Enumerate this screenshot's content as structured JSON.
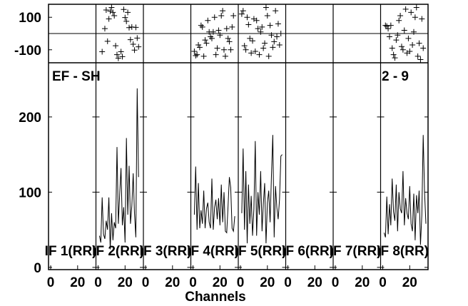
{
  "chart_data": {
    "type": "line",
    "baseline": "EF - SH",
    "antenna_pair": "2 - 9",
    "xlabel": "Channels",
    "x_ticks": [
      "0",
      "20"
    ],
    "x_range": [
      0,
      32
    ],
    "phase_ticks": [
      "100",
      "-100"
    ],
    "phase_range": [
      -180,
      180
    ],
    "amp_ticks": [
      "0",
      "100",
      "200"
    ],
    "amp_range": [
      -3,
      272
    ],
    "panels": [
      {
        "label": "IF 1(RR)",
        "phase": [],
        "amp": []
      },
      {
        "label": "IF 2(RR)",
        "phase": [
          [
            3,
            -112
          ],
          [
            5,
            30
          ],
          [
            6,
            145
          ],
          [
            7,
            -48
          ],
          [
            8,
            90
          ],
          [
            9,
            138
          ],
          [
            10,
            160
          ],
          [
            11,
            130
          ],
          [
            12,
            110
          ],
          [
            13,
            -75
          ],
          [
            14,
            -130
          ],
          [
            15,
            -152
          ],
          [
            17,
            -112
          ],
          [
            18,
            -142
          ],
          [
            19,
            148
          ],
          [
            20,
            98
          ],
          [
            21,
            75
          ],
          [
            22,
            130
          ],
          [
            23,
            36
          ],
          [
            24,
            -38
          ],
          [
            25,
            40
          ],
          [
            26,
            -66
          ],
          [
            27,
            -102
          ],
          [
            28,
            38
          ],
          [
            29,
            -28
          ],
          [
            30,
            -82
          ]
        ],
        "amp": [
          [
            1,
            42
          ],
          [
            2,
            33
          ],
          [
            3,
            93
          ],
          [
            4,
            44
          ],
          [
            5,
            38
          ],
          [
            6,
            62
          ],
          [
            7,
            50
          ],
          [
            8,
            93
          ],
          [
            9,
            24
          ],
          [
            10,
            72
          ],
          [
            11,
            36
          ],
          [
            12,
            60
          ],
          [
            13,
            52
          ],
          [
            14,
            160
          ],
          [
            15,
            58
          ],
          [
            16,
            98
          ],
          [
            17,
            132
          ],
          [
            18,
            56
          ],
          [
            19,
            80
          ],
          [
            20,
            33
          ],
          [
            21,
            172
          ],
          [
            22,
            70
          ],
          [
            23,
            135
          ],
          [
            24,
            58
          ],
          [
            25,
            82
          ],
          [
            26,
            125
          ],
          [
            27,
            72
          ],
          [
            28,
            40
          ],
          [
            29,
            238
          ],
          [
            30,
            120
          ]
        ]
      },
      {
        "label": "IF 3(RR)",
        "phase": [],
        "amp": []
      },
      {
        "label": "IF 4(RR)",
        "phase": [
          [
            1,
            -110
          ],
          [
            2,
            -136
          ],
          [
            3,
            -130
          ],
          [
            4,
            -70
          ],
          [
            5,
            -85
          ],
          [
            6,
            50
          ],
          [
            7,
            40
          ],
          [
            8,
            -140
          ],
          [
            9,
            -40
          ],
          [
            10,
            -60
          ],
          [
            11,
            80
          ],
          [
            12,
            10
          ],
          [
            13,
            -20
          ],
          [
            14,
            -30
          ],
          [
            15,
            10
          ],
          [
            16,
            100
          ],
          [
            17,
            -130
          ],
          [
            18,
            -90
          ],
          [
            19,
            20
          ],
          [
            20,
            -10
          ],
          [
            21,
            110
          ],
          [
            22,
            140
          ],
          [
            23,
            -100
          ],
          [
            24,
            -140
          ],
          [
            25,
            30
          ],
          [
            26,
            -30
          ],
          [
            27,
            -50
          ],
          [
            28,
            -100
          ],
          [
            29,
            40
          ],
          [
            30,
            110
          ]
        ],
        "amp": [
          [
            1,
            70
          ],
          [
            2,
            134
          ],
          [
            3,
            50
          ],
          [
            4,
            112
          ],
          [
            5,
            52
          ],
          [
            6,
            76
          ],
          [
            7,
            58
          ],
          [
            8,
            102
          ],
          [
            9,
            52
          ],
          [
            10,
            78
          ],
          [
            11,
            86
          ],
          [
            12,
            60
          ],
          [
            13,
            52
          ],
          [
            14,
            118
          ],
          [
            15,
            50
          ],
          [
            16,
            80
          ],
          [
            17,
            90
          ],
          [
            18,
            64
          ],
          [
            19,
            92
          ],
          [
            20,
            56
          ],
          [
            21,
            110
          ],
          [
            22,
            60
          ],
          [
            23,
            100
          ],
          [
            24,
            48
          ],
          [
            25,
            46
          ],
          [
            26,
            82
          ],
          [
            27,
            120
          ],
          [
            28,
            106
          ],
          [
            29,
            52
          ],
          [
            30,
            48
          ],
          [
            31,
            68
          ]
        ]
      },
      {
        "label": "IF 5(RR)",
        "phase": [
          [
            1,
            120
          ],
          [
            2,
            140
          ],
          [
            3,
            -75
          ],
          [
            4,
            -100
          ],
          [
            5,
            100
          ],
          [
            6,
            55
          ],
          [
            7,
            -30
          ],
          [
            8,
            -120
          ],
          [
            9,
            -45
          ],
          [
            10,
            90
          ],
          [
            11,
            -110
          ],
          [
            12,
            80
          ],
          [
            13,
            30
          ],
          [
            14,
            -130
          ],
          [
            15,
            10
          ],
          [
            16,
            40
          ],
          [
            17,
            -90
          ],
          [
            18,
            -60
          ],
          [
            19,
            160
          ],
          [
            20,
            110
          ],
          [
            21,
            -140
          ],
          [
            22,
            50
          ],
          [
            23,
            -10
          ],
          [
            24,
            -85
          ],
          [
            25,
            -50
          ],
          [
            26,
            140
          ],
          [
            27,
            -20
          ],
          [
            28,
            60
          ],
          [
            29,
            -70
          ],
          [
            30,
            0
          ]
        ],
        "amp": [
          [
            1,
            72
          ],
          [
            2,
            158
          ],
          [
            3,
            50
          ],
          [
            4,
            128
          ],
          [
            5,
            32
          ],
          [
            6,
            110
          ],
          [
            7,
            58
          ],
          [
            8,
            95
          ],
          [
            9,
            42
          ],
          [
            10,
            78
          ],
          [
            11,
            168
          ],
          [
            12,
            42
          ],
          [
            13,
            100
          ],
          [
            14,
            70
          ],
          [
            15,
            128
          ],
          [
            16,
            48
          ],
          [
            17,
            84
          ],
          [
            18,
            112
          ],
          [
            19,
            32
          ],
          [
            20,
            86
          ],
          [
            21,
            102
          ],
          [
            22,
            60
          ],
          [
            23,
            122
          ],
          [
            24,
            176
          ],
          [
            25,
            40
          ],
          [
            26,
            108
          ],
          [
            27,
            80
          ],
          [
            28,
            64
          ],
          [
            29,
            90
          ],
          [
            30,
            148
          ],
          [
            31,
            150
          ]
        ]
      },
      {
        "label": "IF 6(RR)",
        "phase": [],
        "amp": []
      },
      {
        "label": "IF 7(RR)",
        "phase": [],
        "amp": []
      },
      {
        "label": "IF 8(RR)",
        "phase": [
          [
            2,
            50
          ],
          [
            3,
            45
          ],
          [
            4,
            30
          ],
          [
            5,
            -20
          ],
          [
            6,
            50
          ],
          [
            7,
            -90
          ],
          [
            8,
            -130
          ],
          [
            9,
            -150
          ],
          [
            10,
            -40
          ],
          [
            11,
            -10
          ],
          [
            12,
            80
          ],
          [
            13,
            110
          ],
          [
            14,
            -80
          ],
          [
            15,
            -100
          ],
          [
            16,
            20
          ],
          [
            17,
            150
          ],
          [
            18,
            -120
          ],
          [
            19,
            -30
          ],
          [
            20,
            -110
          ],
          [
            21,
            130
          ],
          [
            22,
            -70
          ],
          [
            23,
            10
          ],
          [
            24,
            100
          ],
          [
            25,
            160
          ],
          [
            26,
            -140
          ],
          [
            27,
            -60
          ],
          [
            28,
            -160
          ],
          [
            29,
            90
          ],
          [
            30,
            -90
          ]
        ],
        "amp": [
          [
            1,
            46
          ],
          [
            2,
            40
          ],
          [
            3,
            94
          ],
          [
            4,
            44
          ],
          [
            5,
            84
          ],
          [
            6,
            56
          ],
          [
            7,
            118
          ],
          [
            8,
            74
          ],
          [
            9,
            62
          ],
          [
            10,
            110
          ],
          [
            11,
            48
          ],
          [
            12,
            100
          ],
          [
            13,
            78
          ],
          [
            14,
            72
          ],
          [
            15,
            128
          ],
          [
            16,
            56
          ],
          [
            17,
            92
          ],
          [
            18,
            72
          ],
          [
            19,
            64
          ],
          [
            20,
            108
          ],
          [
            21,
            58
          ],
          [
            22,
            48
          ],
          [
            23,
            98
          ],
          [
            24,
            36
          ],
          [
            25,
            96
          ],
          [
            26,
            72
          ],
          [
            27,
            102
          ],
          [
            28,
            30
          ],
          [
            29,
            70
          ],
          [
            30,
            176
          ],
          [
            31,
            100
          ],
          [
            32,
            58
          ]
        ]
      }
    ]
  }
}
